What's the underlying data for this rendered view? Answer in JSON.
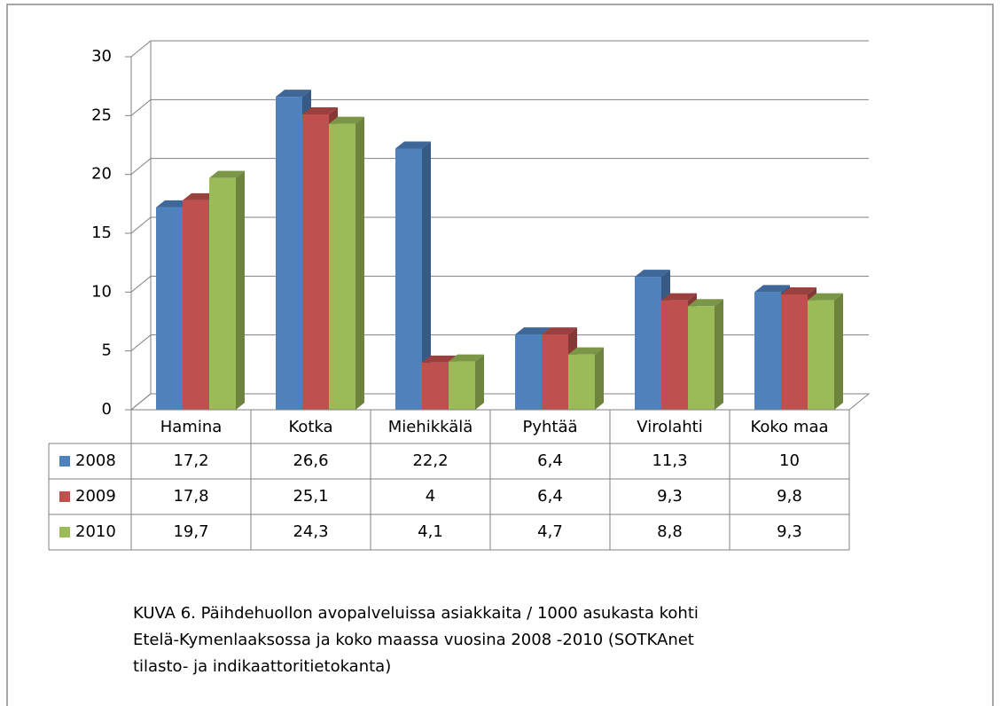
{
  "chart_data": {
    "type": "bar3d",
    "categories": [
      "Hamina",
      "Kotka",
      "Miehikkälä",
      "Pyhtää",
      "Virolahti",
      "Koko maa"
    ],
    "series": [
      {
        "name": "2008",
        "color": "#4f81bd",
        "values": [
          17.2,
          26.6,
          22.2,
          6.4,
          11.3,
          10
        ],
        "value_labels": [
          "17,2",
          "26,6",
          "22,2",
          "6,4",
          "11,3",
          "10"
        ]
      },
      {
        "name": "2009",
        "color": "#c0504d",
        "values": [
          17.8,
          25.1,
          4,
          6.4,
          9.3,
          9.8
        ],
        "value_labels": [
          "17,8",
          "25,1",
          "4",
          "6,4",
          "9,3",
          "9,8"
        ]
      },
      {
        "name": "2010",
        "color": "#9bbb59",
        "values": [
          19.7,
          24.3,
          4.1,
          4.7,
          8.8,
          9.3
        ],
        "value_labels": [
          "19,7",
          "24,3",
          "4,1",
          "4,7",
          "8,8",
          "9,3"
        ]
      }
    ],
    "ylim": [
      0,
      30
    ],
    "yticks": [
      0,
      5,
      10,
      15,
      20,
      25,
      30
    ],
    "grid": true,
    "caption": [
      "KUVA 6. Päihdehuollon avopalveluissa asiakkaita / 1000 asukasta kohti",
      "Etelä-Kymenlaaksossa ja koko maassa vuosina 2008 -2010 (SOTKAnet",
      "tilasto- ja indikaattoritietokanta)"
    ]
  }
}
